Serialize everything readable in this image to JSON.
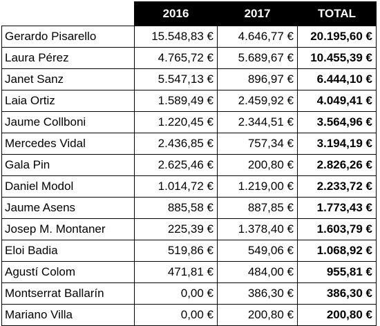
{
  "table": {
    "headers": [
      "",
      "2016",
      "2017",
      "TOTAL"
    ],
    "rows": [
      {
        "name": "Gerardo Pisarello",
        "y2016": "15.548,83 €",
        "y2017": "4.646,77 €",
        "total": "20.195,60 €"
      },
      {
        "name": "Laura Pérez",
        "y2016": "4.765,72 €",
        "y2017": "5.689,67 €",
        "total": "10.455,39 €"
      },
      {
        "name": "Janet Sanz",
        "y2016": "5.547,13 €",
        "y2017": "896,97 €",
        "total": "6.444,10 €"
      },
      {
        "name": "Laia Ortiz",
        "y2016": "1.589,49 €",
        "y2017": "2.459,92 €",
        "total": "4.049,41 €"
      },
      {
        "name": "Jaume Collboni",
        "y2016": "1.220,45 €",
        "y2017": "2.344,51 €",
        "total": "3.564,96 €"
      },
      {
        "name": "Mercedes Vidal",
        "y2016": "2.436,85 €",
        "y2017": "757,34 €",
        "total": "3.194,19 €"
      },
      {
        "name": "Gala Pin",
        "y2016": "2.625,46 €",
        "y2017": "200,80 €",
        "total": "2.826,26 €"
      },
      {
        "name": "Daniel Modol",
        "y2016": "1.014,72 €",
        "y2017": "1.219,00 €",
        "total": "2.233,72 €"
      },
      {
        "name": "Jaume Asens",
        "y2016": "885,58 €",
        "y2017": "887,85 €",
        "total": "1.773,43 €"
      },
      {
        "name": "Josep M. Montaner",
        "y2016": "225,39 €",
        "y2017": "1.378,40 €",
        "total": "1.603,79 €"
      },
      {
        "name": "Eloi Badia",
        "y2016": "519,86 €",
        "y2017": "549,06 €",
        "total": "1.068,92 €"
      },
      {
        "name": "Agustí Colom",
        "y2016": "471,81 €",
        "y2017": "484,00 €",
        "total": "955,81 €"
      },
      {
        "name": "Montserrat Ballarín",
        "y2016": "0,00 €",
        "y2017": "386,30 €",
        "total": "386,30 €"
      },
      {
        "name": "Mariano Villa",
        "y2016": "0,00 €",
        "y2017": "200,80 €",
        "total": "200,80 €"
      }
    ]
  },
  "colors": {
    "header_bg": "#000000",
    "header_text": "#ffffff",
    "grid": "#000000",
    "background": "#ffffff"
  }
}
